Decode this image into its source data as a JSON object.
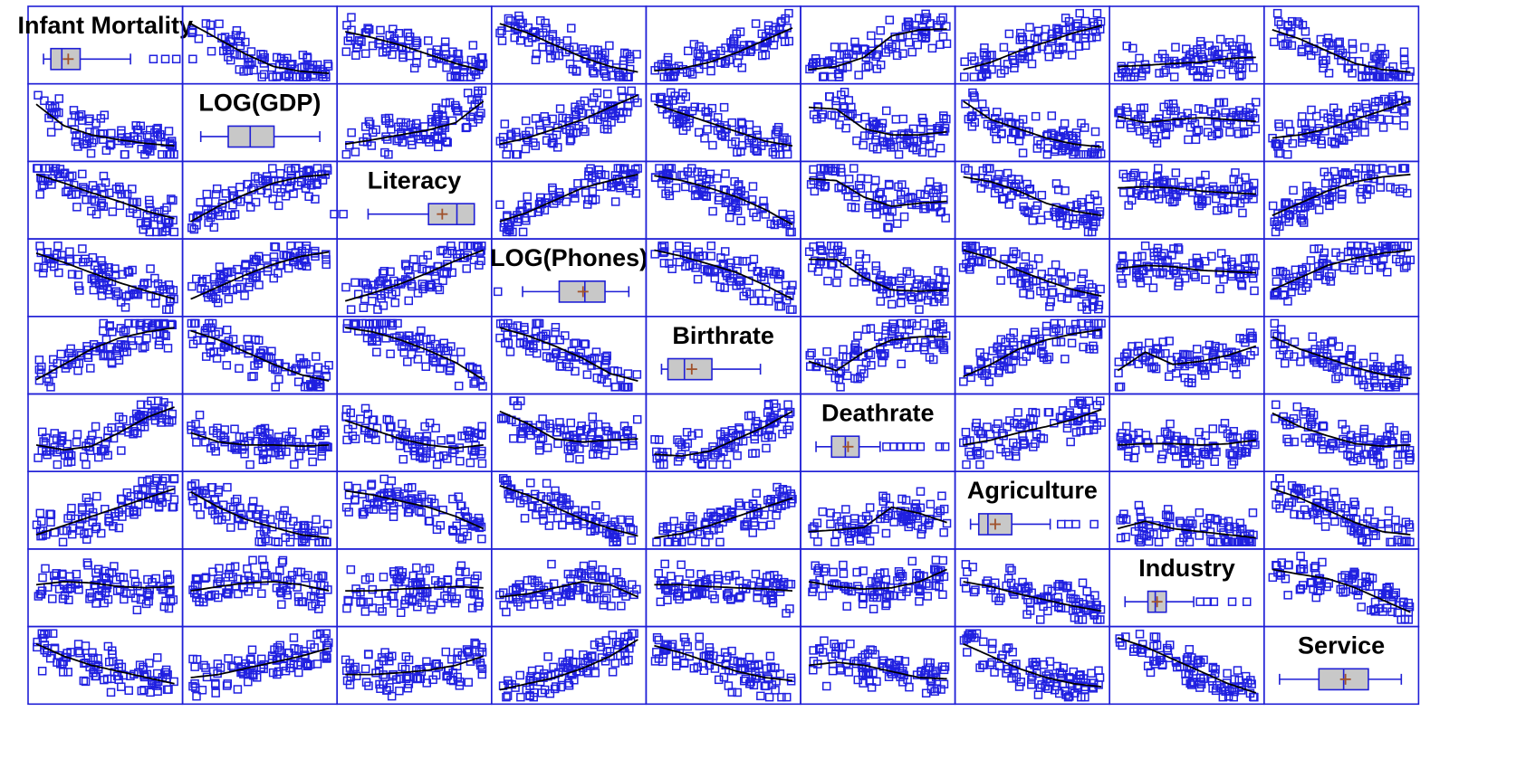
{
  "chart_data": {
    "type": "scatter-matrix",
    "variables": [
      {
        "name": "Infant Mortality",
        "box": {
          "lo": 0.05,
          "q1": 0.13,
          "med": 0.25,
          "q3": 0.45,
          "hi": 1.0,
          "mean": 0.32
        },
        "outliers": [
          1.25,
          1.38,
          1.5,
          1.68
        ]
      },
      {
        "name": "LOG(GDP)",
        "box": {
          "lo": 0.08,
          "q1": 0.38,
          "med": 0.62,
          "q3": 0.88,
          "hi": 1.38
        },
        "outliers": []
      },
      {
        "name": "Literacy",
        "box": {
          "lo": 0.22,
          "q1": 0.88,
          "med": 1.19,
          "q3": 1.38,
          "hi": 1.38,
          "mean": 1.03
        },
        "outliers": [
          -0.15,
          -0.05
        ]
      },
      {
        "name": "LOG(Phones)",
        "box": {
          "lo": 0.22,
          "q1": 0.62,
          "med": 0.9,
          "q3": 1.12,
          "hi": 1.38,
          "mean": 0.88
        },
        "outliers": [
          -0.05
        ]
      },
      {
        "name": "Birthrate",
        "box": {
          "lo": 0.05,
          "q1": 0.12,
          "med": 0.3,
          "q3": 0.6,
          "hi": 1.13,
          "mean": 0.38
        },
        "outliers": []
      },
      {
        "name": "Deathrate",
        "box": {
          "lo": 0.05,
          "q1": 0.22,
          "med": 0.37,
          "q3": 0.52,
          "hi": 0.75,
          "mean": 0.4
        },
        "outliers": [
          0.82,
          0.9,
          0.97,
          1.04,
          1.12,
          1.19,
          1.4,
          1.46
        ]
      },
      {
        "name": "Agriculture",
        "box": {
          "lo": 0.05,
          "q1": 0.14,
          "med": 0.24,
          "q3": 0.5,
          "hi": 0.92,
          "mean": 0.32
        },
        "outliers": [
          1.04,
          1.12,
          1.2,
          1.4
        ]
      },
      {
        "name": "Industry",
        "box": {
          "lo": 0.05,
          "q1": 0.3,
          "med": 0.38,
          "q3": 0.5,
          "hi": 0.8,
          "mean": 0.4
        },
        "outliers": [
          0.87,
          0.95,
          1.02,
          1.22,
          1.38
        ]
      },
      {
        "name": "Service",
        "box": {
          "lo": 0.05,
          "q1": 0.48,
          "med": 0.75,
          "q3": 1.02,
          "hi": 1.38,
          "mean": 0.77
        },
        "outliers": []
      }
    ],
    "curves": [
      [
        null,
        [
          0.85,
          0.6,
          0.35,
          0.15,
          0.07,
          0.04
        ],
        [
          0.72,
          0.62,
          0.5,
          0.35,
          0.2,
          0.08
        ],
        [
          0.85,
          0.7,
          0.5,
          0.3,
          0.15,
          0.06
        ],
        [
          0.08,
          0.12,
          0.22,
          0.38,
          0.58,
          0.78
        ],
        [
          0.1,
          0.15,
          0.3,
          0.65,
          0.75,
          0.76
        ],
        [
          0.1,
          0.22,
          0.4,
          0.55,
          0.7,
          0.82
        ],
        [
          0.15,
          0.17,
          0.2,
          0.22,
          0.28,
          0.3
        ],
        [
          0.75,
          0.6,
          0.4,
          0.2,
          0.1,
          0.06
        ]
      ],
      [
        [
          0.8,
          0.45,
          0.3,
          0.22,
          0.16,
          0.12
        ],
        null,
        [
          0.15,
          0.22,
          0.3,
          0.38,
          0.5,
          0.85
        ],
        [
          0.15,
          0.25,
          0.4,
          0.55,
          0.75,
          0.95
        ],
        [
          0.8,
          0.65,
          0.5,
          0.35,
          0.2,
          0.12
        ],
        [
          0.75,
          0.72,
          0.4,
          0.3,
          0.3,
          0.35
        ],
        [
          0.85,
          0.55,
          0.4,
          0.25,
          0.15,
          0.1
        ],
        [
          0.6,
          0.5,
          0.55,
          0.58,
          0.55,
          0.52
        ],
        [
          0.25,
          0.3,
          0.4,
          0.55,
          0.7,
          0.85
        ]
      ],
      [
        [
          0.92,
          0.78,
          0.62,
          0.48,
          0.32,
          0.2
        ],
        [
          0.15,
          0.4,
          0.6,
          0.78,
          0.88,
          0.92
        ],
        null,
        [
          0.15,
          0.3,
          0.5,
          0.7,
          0.82,
          0.92
        ],
        [
          0.9,
          0.82,
          0.7,
          0.55,
          0.35,
          0.1
        ],
        [
          0.85,
          0.82,
          0.55,
          0.4,
          0.45,
          0.48
        ],
        [
          0.88,
          0.8,
          0.65,
          0.45,
          0.32,
          0.25
        ],
        [
          0.7,
          0.72,
          0.7,
          0.65,
          0.62,
          0.6
        ],
        [
          0.25,
          0.45,
          0.65,
          0.8,
          0.88,
          0.92
        ]
      ],
      [
        [
          0.9,
          0.75,
          0.58,
          0.42,
          0.28,
          0.15
        ],
        [
          0.15,
          0.35,
          0.55,
          0.72,
          0.85,
          0.92
        ],
        [
          0.12,
          0.25,
          0.4,
          0.58,
          0.78,
          0.95
        ],
        null,
        [
          0.95,
          0.85,
          0.72,
          0.58,
          0.38,
          0.15
        ],
        [
          0.8,
          0.8,
          0.5,
          0.3,
          0.28,
          0.3
        ],
        [
          0.95,
          0.82,
          0.62,
          0.45,
          0.3,
          0.2
        ],
        [
          0.65,
          0.7,
          0.68,
          0.62,
          0.6,
          0.58
        ],
        [
          0.3,
          0.5,
          0.7,
          0.82,
          0.9,
          0.95
        ]
      ],
      [
        [
          0.1,
          0.35,
          0.6,
          0.78,
          0.88,
          0.95
        ],
        [
          0.9,
          0.75,
          0.55,
          0.35,
          0.18,
          0.08
        ],
        [
          0.95,
          0.88,
          0.75,
          0.58,
          0.38,
          0.1
        ],
        [
          0.95,
          0.82,
          0.65,
          0.45,
          0.2,
          0.08
        ],
        null,
        [
          0.4,
          0.25,
          0.55,
          0.75,
          0.8,
          0.8
        ],
        [
          0.15,
          0.35,
          0.6,
          0.75,
          0.85,
          0.92
        ],
        [
          0.25,
          0.55,
          0.35,
          0.4,
          0.5,
          0.65
        ],
        [
          0.8,
          0.6,
          0.45,
          0.3,
          0.18,
          0.12
        ]
      ],
      [
        [
          0.3,
          0.22,
          0.28,
          0.5,
          0.75,
          0.92
        ],
        [
          0.5,
          0.35,
          0.3,
          0.3,
          0.28,
          0.3
        ],
        [
          0.7,
          0.55,
          0.4,
          0.3,
          0.25,
          0.3
        ],
        [
          0.85,
          0.65,
          0.4,
          0.35,
          0.38,
          0.4
        ],
        [
          0.15,
          0.12,
          0.2,
          0.4,
          0.6,
          0.85
        ],
        null,
        [
          0.3,
          0.38,
          0.5,
          0.6,
          0.72,
          0.88
        ],
        [
          0.3,
          0.32,
          0.32,
          0.3,
          0.32,
          0.38
        ],
        [
          0.82,
          0.6,
          0.45,
          0.32,
          0.28,
          0.3
        ]
      ],
      [
        [
          0.1,
          0.25,
          0.4,
          0.55,
          0.7,
          0.85
        ],
        [
          0.8,
          0.55,
          0.35,
          0.22,
          0.1,
          0.05
        ],
        [
          0.82,
          0.75,
          0.65,
          0.55,
          0.4,
          0.2
        ],
        [
          0.9,
          0.75,
          0.55,
          0.35,
          0.2,
          0.08
        ],
        [
          0.05,
          0.12,
          0.25,
          0.4,
          0.55,
          0.7
        ],
        [
          0.15,
          0.18,
          0.22,
          0.55,
          0.45,
          0.3
        ],
        null,
        [
          0.2,
          0.32,
          0.2,
          0.15,
          0.1,
          0.05
        ],
        [
          0.85,
          0.7,
          0.5,
          0.3,
          0.15,
          0.1
        ]
      ],
      [
        [
          0.55,
          0.6,
          0.58,
          0.52,
          0.5,
          0.52
        ],
        [
          0.45,
          0.52,
          0.58,
          0.6,
          0.55,
          0.45
        ],
        [
          0.45,
          0.45,
          0.48,
          0.5,
          0.52,
          0.5
        ],
        [
          0.35,
          0.4,
          0.5,
          0.6,
          0.55,
          0.35
        ],
        [
          0.55,
          0.55,
          0.52,
          0.5,
          0.48,
          0.45
        ],
        [
          0.6,
          0.52,
          0.48,
          0.5,
          0.6,
          0.8
        ],
        [
          0.6,
          0.52,
          0.4,
          0.3,
          0.2,
          0.12
        ],
        null,
        [
          0.8,
          0.72,
          0.65,
          0.5,
          0.3,
          0.1
        ]
      ],
      [
        [
          0.85,
          0.65,
          0.5,
          0.4,
          0.3,
          0.2
        ],
        [
          0.3,
          0.35,
          0.45,
          0.55,
          0.65,
          0.78
        ],
        [
          0.35,
          0.35,
          0.38,
          0.42,
          0.5,
          0.65
        ],
        [
          0.1,
          0.2,
          0.3,
          0.45,
          0.65,
          0.92
        ],
        [
          0.82,
          0.7,
          0.55,
          0.4,
          0.3,
          0.25
        ],
        [
          0.5,
          0.55,
          0.5,
          0.4,
          0.3,
          0.28
        ],
        [
          0.85,
          0.65,
          0.45,
          0.3,
          0.2,
          0.15
        ],
        [
          0.95,
          0.8,
          0.6,
          0.4,
          0.2,
          0.05
        ],
        null
      ]
    ]
  }
}
